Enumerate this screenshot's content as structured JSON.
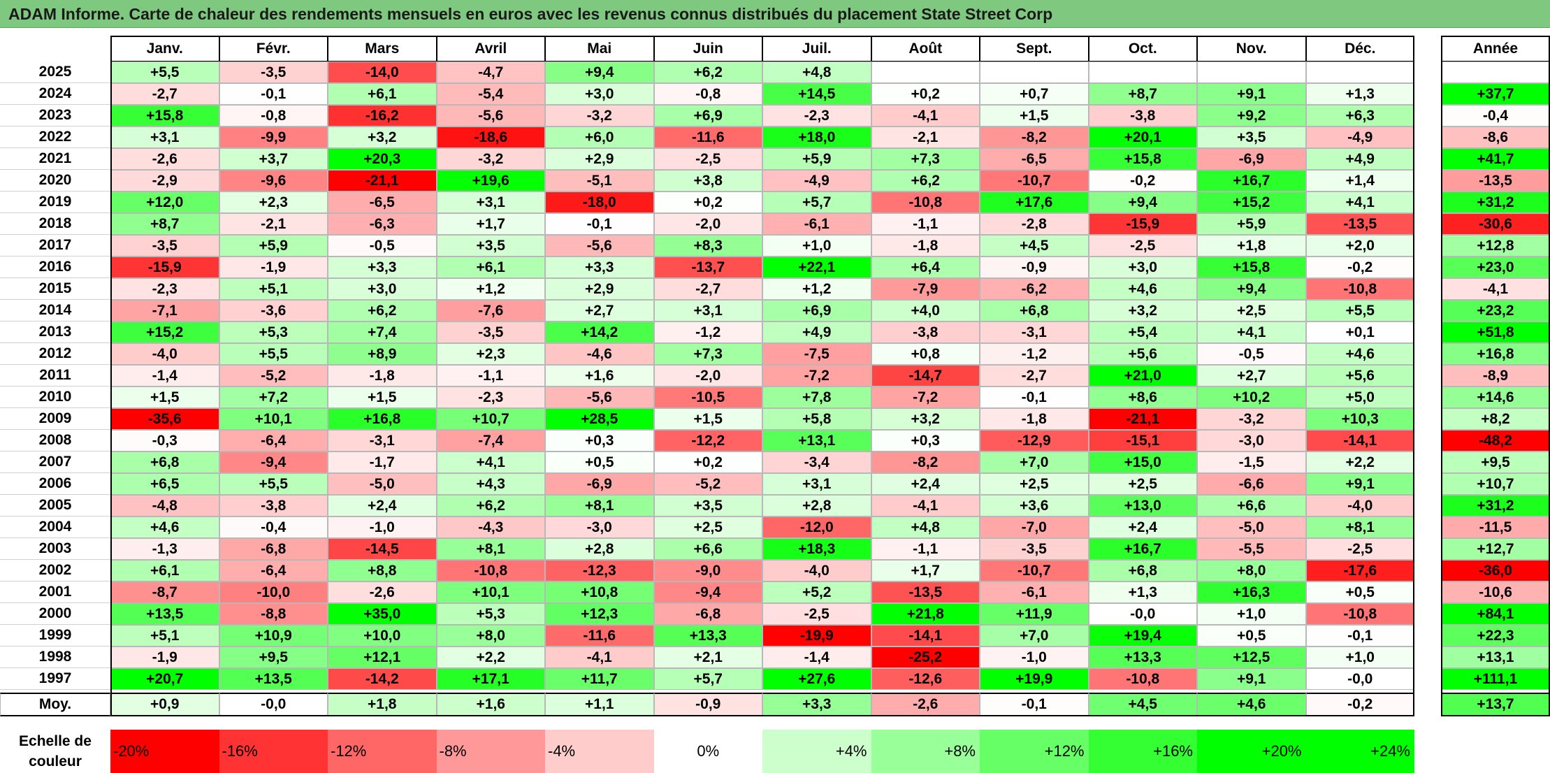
{
  "title": "ADAM Informe. Carte de chaleur des rendements mensuels en euros avec les revenus connus distribués du placement State Street Corp",
  "chart_data": {
    "type": "heatmap",
    "title": "ADAM Informe. Carte de chaleur des rendements mensuels en euros avec les revenus connus distribués du placement State Street Corp",
    "months": [
      "Janv.",
      "Févr.",
      "Mars",
      "Avril",
      "Mai",
      "Juin",
      "Juil.",
      "Août",
      "Sept.",
      "Oct.",
      "Nov.",
      "Déc."
    ],
    "year_header": "Année",
    "rows": [
      {
        "year": "2025",
        "values": [
          "+5,5",
          "-3,5",
          "-14,0",
          "-4,7",
          "+9,4",
          "+6,2",
          "+4,8",
          "",
          "",
          "",
          "",
          ""
        ],
        "annual": ""
      },
      {
        "year": "2024",
        "values": [
          "-2,7",
          "-0,1",
          "+6,1",
          "-5,4",
          "+3,0",
          "-0,8",
          "+14,5",
          "+0,2",
          "+0,7",
          "+8,7",
          "+9,1",
          "+1,3"
        ],
        "annual": "+37,7"
      },
      {
        "year": "2023",
        "values": [
          "+15,8",
          "-0,8",
          "-16,2",
          "-5,6",
          "-3,2",
          "+6,9",
          "-2,3",
          "-4,1",
          "+1,5",
          "-3,8",
          "+9,2",
          "+6,3"
        ],
        "annual": "-0,4"
      },
      {
        "year": "2022",
        "values": [
          "+3,1",
          "-9,9",
          "+3,2",
          "-18,6",
          "+6,0",
          "-11,6",
          "+18,0",
          "-2,1",
          "-8,2",
          "+20,1",
          "+3,5",
          "-4,9"
        ],
        "annual": "-8,6"
      },
      {
        "year": "2021",
        "values": [
          "-2,6",
          "+3,7",
          "+20,3",
          "-3,2",
          "+2,9",
          "-2,5",
          "+5,9",
          "+7,3",
          "-6,5",
          "+15,8",
          "-6,9",
          "+4,9"
        ],
        "annual": "+41,7"
      },
      {
        "year": "2020",
        "values": [
          "-2,9",
          "-9,6",
          "-21,1",
          "+19,6",
          "-5,1",
          "+3,8",
          "-4,9",
          "+6,2",
          "-10,7",
          "-0,2",
          "+16,7",
          "+1,4"
        ],
        "annual": "-13,5"
      },
      {
        "year": "2019",
        "values": [
          "+12,0",
          "+2,3",
          "-6,5",
          "+3,1",
          "-18,0",
          "+0,2",
          "+5,7",
          "-10,8",
          "+17,6",
          "+9,4",
          "+15,2",
          "+4,1"
        ],
        "annual": "+31,2"
      },
      {
        "year": "2018",
        "values": [
          "+8,7",
          "-2,1",
          "-6,3",
          "+1,7",
          "-0,1",
          "-2,0",
          "-6,1",
          "-1,1",
          "-2,8",
          "-15,9",
          "+5,9",
          "-13,5"
        ],
        "annual": "-30,6"
      },
      {
        "year": "2017",
        "values": [
          "-3,5",
          "+5,9",
          "-0,5",
          "+3,5",
          "-5,6",
          "+8,3",
          "+1,0",
          "-1,8",
          "+4,5",
          "-2,5",
          "+1,8",
          "+2,0"
        ],
        "annual": "+12,8"
      },
      {
        "year": "2016",
        "values": [
          "-15,9",
          "-1,9",
          "+3,3",
          "+6,1",
          "+3,3",
          "-13,7",
          "+22,1",
          "+6,4",
          "-0,9",
          "+3,0",
          "+15,8",
          "-0,2"
        ],
        "annual": "+23,0"
      },
      {
        "year": "2015",
        "values": [
          "-2,3",
          "+5,1",
          "+3,0",
          "+1,2",
          "+2,9",
          "-2,7",
          "+1,2",
          "-7,9",
          "-6,2",
          "+4,6",
          "+9,4",
          "-10,8"
        ],
        "annual": "-4,1"
      },
      {
        "year": "2014",
        "values": [
          "-7,1",
          "-3,6",
          "+6,2",
          "-7,6",
          "+2,7",
          "+3,1",
          "+6,9",
          "+4,0",
          "+6,8",
          "+3,2",
          "+2,5",
          "+5,5"
        ],
        "annual": "+23,2"
      },
      {
        "year": "2013",
        "values": [
          "+15,2",
          "+5,3",
          "+7,4",
          "-3,5",
          "+14,2",
          "-1,2",
          "+4,9",
          "-3,8",
          "-3,1",
          "+5,4",
          "+4,1",
          "+0,1"
        ],
        "annual": "+51,8"
      },
      {
        "year": "2012",
        "values": [
          "-4,0",
          "+5,5",
          "+8,9",
          "+2,3",
          "-4,6",
          "+7,3",
          "-7,5",
          "+0,8",
          "-1,2",
          "+5,6",
          "-0,5",
          "+4,6"
        ],
        "annual": "+16,8"
      },
      {
        "year": "2011",
        "values": [
          "-1,4",
          "-5,2",
          "-1,8",
          "-1,1",
          "+1,6",
          "-2,0",
          "-7,2",
          "-14,7",
          "-2,7",
          "+21,0",
          "+2,7",
          "+5,6"
        ],
        "annual": "-8,9"
      },
      {
        "year": "2010",
        "values": [
          "+1,5",
          "+7,2",
          "+1,5",
          "-2,3",
          "-5,6",
          "-10,5",
          "+7,8",
          "-7,2",
          "-0,1",
          "+8,6",
          "+10,2",
          "+5,0"
        ],
        "annual": "+14,6"
      },
      {
        "year": "2009",
        "values": [
          "-35,6",
          "+10,1",
          "+16,8",
          "+10,7",
          "+28,5",
          "+1,5",
          "+5,8",
          "+3,2",
          "-1,8",
          "-21,1",
          "-3,2",
          "+10,3"
        ],
        "annual": "+8,2"
      },
      {
        "year": "2008",
        "values": [
          "-0,3",
          "-6,4",
          "-3,1",
          "-7,4",
          "+0,3",
          "-12,2",
          "+13,1",
          "+0,3",
          "-12,9",
          "-15,1",
          "-3,0",
          "-14,1"
        ],
        "annual": "-48,2"
      },
      {
        "year": "2007",
        "values": [
          "+6,8",
          "-9,4",
          "-1,7",
          "+4,1",
          "+0,5",
          "+0,2",
          "-3,4",
          "-8,2",
          "+7,0",
          "+15,0",
          "-1,5",
          "+2,2"
        ],
        "annual": "+9,5"
      },
      {
        "year": "2006",
        "values": [
          "+6,5",
          "+5,5",
          "-5,0",
          "+4,3",
          "-6,9",
          "-5,2",
          "+3,1",
          "+2,4",
          "+2,5",
          "+2,5",
          "-6,6",
          "+9,1"
        ],
        "annual": "+10,7"
      },
      {
        "year": "2005",
        "values": [
          "-4,8",
          "-3,8",
          "+2,4",
          "+6,2",
          "+8,1",
          "+3,5",
          "+2,8",
          "-4,1",
          "+3,6",
          "+13,0",
          "+6,6",
          "-4,0"
        ],
        "annual": "+31,2"
      },
      {
        "year": "2004",
        "values": [
          "+4,6",
          "-0,4",
          "-1,0",
          "-4,3",
          "-3,0",
          "+2,5",
          "-12,0",
          "+4,8",
          "-7,0",
          "+2,4",
          "-5,0",
          "+8,1"
        ],
        "annual": "-11,5"
      },
      {
        "year": "2003",
        "values": [
          "-1,3",
          "-6,8",
          "-14,5",
          "+8,1",
          "+2,8",
          "+6,6",
          "+18,3",
          "-1,1",
          "-3,5",
          "+16,7",
          "-5,5",
          "-2,5"
        ],
        "annual": "+12,7"
      },
      {
        "year": "2002",
        "values": [
          "+6,1",
          "-6,4",
          "+8,8",
          "-10,8",
          "-12,3",
          "-9,0",
          "-4,0",
          "+1,7",
          "-10,7",
          "+6,8",
          "+8,0",
          "-17,6"
        ],
        "annual": "-36,0"
      },
      {
        "year": "2001",
        "values": [
          "-8,7",
          "-10,0",
          "-2,6",
          "+10,1",
          "+10,8",
          "-9,4",
          "+5,2",
          "-13,5",
          "-6,1",
          "+1,3",
          "+16,3",
          "+0,5"
        ],
        "annual": "-10,6"
      },
      {
        "year": "2000",
        "values": [
          "+13,5",
          "-8,8",
          "+35,0",
          "+5,3",
          "+12,3",
          "-6,8",
          "-2,5",
          "+21,8",
          "+11,9",
          "-0,0",
          "+1,0",
          "-10,8"
        ],
        "annual": "+84,1"
      },
      {
        "year": "1999",
        "values": [
          "+5,1",
          "+10,9",
          "+10,0",
          "+8,0",
          "-11,6",
          "+13,3",
          "-19,9",
          "-14,1",
          "+7,0",
          "+19,4",
          "+0,5",
          "-0,1"
        ],
        "annual": "+22,3"
      },
      {
        "year": "1998",
        "values": [
          "-1,9",
          "+9,5",
          "+12,1",
          "+2,2",
          "-4,1",
          "+2,1",
          "-1,4",
          "-25,2",
          "-1,0",
          "+13,3",
          "+12,5",
          "+1,0"
        ],
        "annual": "+13,1"
      },
      {
        "year": "1997",
        "values": [
          "+20,7",
          "+13,5",
          "-14,2",
          "+17,1",
          "+11,7",
          "+5,7",
          "+27,6",
          "-12,6",
          "+19,9",
          "-10,8",
          "+9,1",
          "-0,0"
        ],
        "annual": "+111,1"
      }
    ],
    "average": {
      "label": "Moy.",
      "values": [
        "+0,9",
        "-0,0",
        "+1,8",
        "+1,6",
        "+1,1",
        "-0,9",
        "+3,3",
        "-2,6",
        "-0,1",
        "+4,5",
        "+4,6",
        "-0,2"
      ],
      "annual": "+13,7"
    },
    "scale": {
      "title_line1": "Echelle de",
      "title_line2": "couleur",
      "labels": [
        "-20%",
        "-16%",
        "-12%",
        "-8%",
        "-4%",
        "0%",
        "+4%",
        "+8%",
        "+12%",
        "+16%",
        "+20%",
        "+24%"
      ]
    }
  }
}
